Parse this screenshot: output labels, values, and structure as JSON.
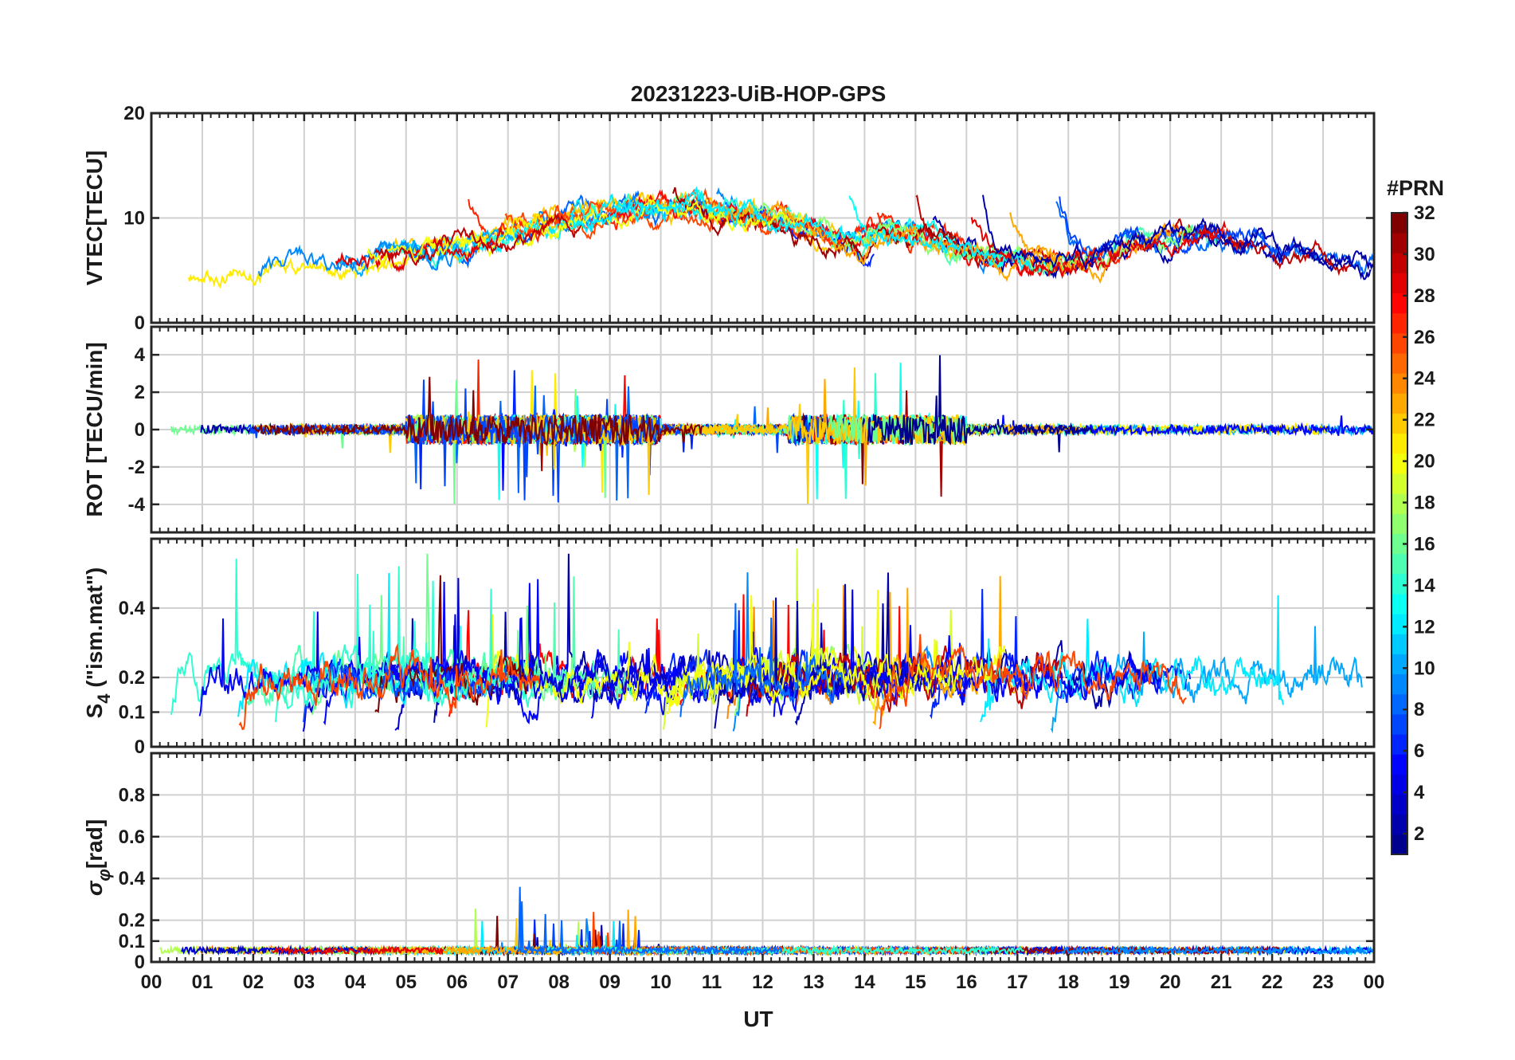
{
  "figure": {
    "title": "20231223-UiB-HOP-GPS",
    "xlabel": "UT",
    "x_ticks": [
      "00",
      "01",
      "02",
      "03",
      "04",
      "05",
      "06",
      "07",
      "08",
      "09",
      "10",
      "11",
      "12",
      "13",
      "14",
      "15",
      "16",
      "17",
      "18",
      "19",
      "20",
      "21",
      "22",
      "23",
      "00"
    ]
  },
  "colorbar": {
    "title": "#PRN",
    "ticks": [
      "2",
      "4",
      "6",
      "8",
      "10",
      "12",
      "14",
      "16",
      "18",
      "20",
      "22",
      "24",
      "26",
      "28",
      "30",
      "32"
    ],
    "range": [
      1,
      32
    ],
    "colormap": [
      "#00008f",
      "#0000ff",
      "#0080ff",
      "#00ffff",
      "#80ff80",
      "#ffff00",
      "#ff8000",
      "#ff0000",
      "#800000"
    ]
  },
  "chart_data": [
    {
      "type": "line",
      "id": "vtec",
      "ylabel": "VTEC[TECU]",
      "ylim": [
        0,
        20
      ],
      "y_ticks": [
        {
          "v": 0,
          "t": "0"
        },
        {
          "v": 10,
          "t": "10"
        },
        {
          "v": 20,
          "t": "20"
        }
      ],
      "xlim": [
        0,
        24
      ],
      "series_seed": 11,
      "n_series": 32,
      "description_note": "multi-PRN VTEC traces"
    },
    {
      "type": "line",
      "id": "rot",
      "ylabel": "ROT [TECU/min]",
      "ylim": [
        -5.5,
        5.5
      ],
      "y_ticks": [
        {
          "v": -4,
          "t": "-4"
        },
        {
          "v": -2,
          "t": "-2"
        },
        {
          "v": 0,
          "t": "0"
        },
        {
          "v": 2,
          "t": "2"
        },
        {
          "v": 4,
          "t": "4"
        }
      ],
      "xlim": [
        0,
        24
      ],
      "series_seed": 23,
      "n_series": 32,
      "description_note": "rate of TEC change"
    },
    {
      "type": "line",
      "id": "s4",
      "ylabel": "S4 (\"ism.mat\")",
      "ylabel_main": "S",
      "ylabel_sub": "4",
      "ylabel_rest": " (\"ism.mat\")",
      "ylim": [
        0,
        0.6
      ],
      "y_ticks": [
        {
          "v": 0,
          "t": "0"
        },
        {
          "v": 0.1,
          "t": "0.1"
        },
        {
          "v": 0.2,
          "t": "0.2"
        },
        {
          "v": 0.4,
          "t": "0.4"
        }
      ],
      "xlim": [
        0,
        24
      ],
      "series_seed": 37,
      "n_series": 32,
      "description_note": "amplitude scintillation index"
    },
    {
      "type": "line",
      "id": "sigphi",
      "ylabel": "σφ[rad]",
      "ylabel_main": "σ",
      "ylabel_sub": "φ",
      "ylabel_rest": "[rad]",
      "ylim": [
        0,
        1
      ],
      "y_ticks": [
        {
          "v": 0,
          "t": "0"
        },
        {
          "v": 0.1,
          "t": "0.1"
        },
        {
          "v": 0.2,
          "t": "0.2"
        },
        {
          "v": 0.4,
          "t": "0.4"
        },
        {
          "v": 0.6,
          "t": "0.6"
        },
        {
          "v": 0.8,
          "t": "0.8"
        }
      ],
      "xlim": [
        0,
        24
      ],
      "series_seed": 53,
      "n_series": 32,
      "description_note": "phase scintillation index"
    }
  ]
}
